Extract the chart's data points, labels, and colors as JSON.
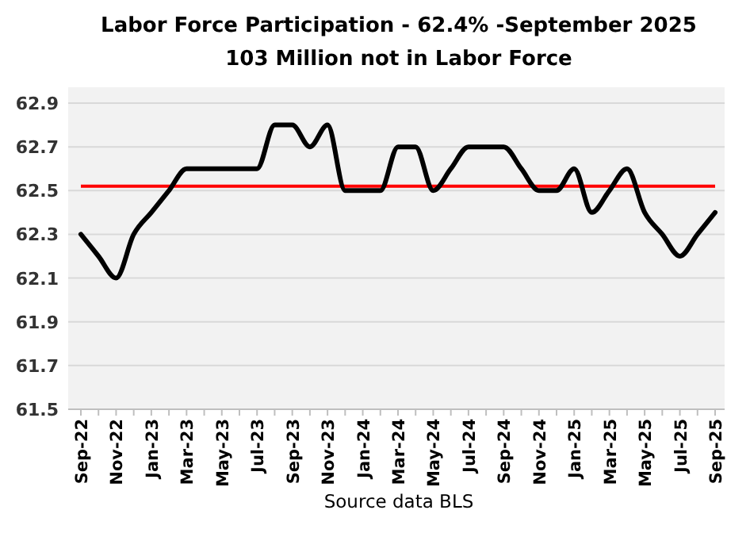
{
  "chart_data": {
    "type": "line",
    "title": "Labor Force Participation - 62.4% -September 2025",
    "subtitle": "103 Million not in Labor Force",
    "categories": [
      "Sep-22",
      null,
      "Nov-22",
      null,
      "Jan-23",
      null,
      "Mar-23",
      null,
      "May-23",
      null,
      "Jul-23",
      null,
      "Sep-23",
      null,
      "Nov-23",
      null,
      "Jan-24",
      null,
      "Mar-24",
      null,
      "May-24",
      null,
      "Jul-24",
      null,
      "Sep-24",
      null,
      "Nov-24",
      null,
      "Jan-25",
      null,
      "Mar-25",
      null,
      "May-25",
      null,
      "Jul-25",
      null,
      "Sep-25"
    ],
    "series": [
      {
        "color": "#000000",
        "values": [
          62.3,
          62.2,
          62.1,
          62.3,
          62.4,
          62.5,
          62.6,
          62.6,
          62.6,
          62.6,
          62.6,
          62.8,
          62.8,
          62.7,
          62.8,
          62.5,
          62.5,
          62.5,
          62.7,
          62.7,
          62.5,
          62.6,
          62.7,
          62.7,
          62.7,
          62.6,
          62.5,
          62.5,
          62.6,
          62.4,
          62.5,
          62.6,
          62.4,
          62.3,
          62.2,
          62.3,
          62.4
        ]
      }
    ],
    "ylim": [
      61.5,
      62.9
    ],
    "yticks": [
      61.5,
      61.7,
      61.9,
      62.1,
      62.3,
      62.5,
      62.7,
      62.9
    ],
    "grid": "y",
    "marker": "none",
    "line_style": "solid",
    "ref_lines": [
      {
        "axis": "y",
        "value": 62.52,
        "color": "#ff0000"
      }
    ],
    "annotations": [
      "Source data BLS"
    ]
  }
}
